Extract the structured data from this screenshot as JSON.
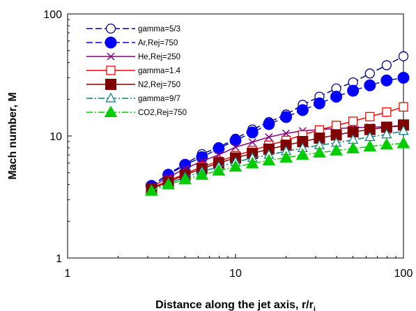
{
  "chart_data": {
    "type": "line",
    "xscale": "log",
    "yscale": "log",
    "xlim": [
      1,
      100
    ],
    "ylim": [
      1,
      100
    ],
    "xlabel": "Distance along the jet axis, r/r",
    "xlabel_sub": "j",
    "ylabel": "Mach number, M",
    "x_ticks": [
      "1",
      "10",
      "100"
    ],
    "y_ticks": [
      "1",
      "10",
      "100"
    ],
    "grid": false,
    "legend_position": "top-left",
    "series": [
      {
        "name": "gamma=5/3",
        "color": "#000080",
        "dash": "dashed",
        "marker": "circle-open",
        "x": [
          3.16,
          3.98,
          5.01,
          6.31,
          7.94,
          10,
          12.6,
          15.8,
          20,
          25.1,
          31.6,
          39.8,
          50.1,
          63.1,
          79.4,
          100
        ],
        "y": [
          3.9,
          4.9,
          5.9,
          7.1,
          8.1,
          9.5,
          11.3,
          13.0,
          15.0,
          18.0,
          21.0,
          24.5,
          27.5,
          32.5,
          38.0,
          45.0
        ]
      },
      {
        "name": "Ar,Rej=750",
        "color": "#0000ff",
        "dash": "dashed",
        "marker": "circle-filled",
        "x": [
          3.16,
          3.98,
          5.01,
          6.31,
          7.94,
          10,
          12.6,
          15.8,
          20,
          25.1,
          31.6,
          39.8,
          50.1,
          63.1,
          79.4,
          100
        ],
        "y": [
          3.9,
          4.8,
          5.8,
          6.7,
          7.9,
          9.2,
          10.7,
          12.5,
          14.3,
          16.3,
          18.5,
          21.0,
          23.5,
          26.0,
          28.5,
          30.0
        ]
      },
      {
        "name": "He,Rej=250",
        "color": "#800080",
        "dash": "solid",
        "marker": "x",
        "x": [
          3.16,
          3.98,
          5.01,
          6.31,
          7.94,
          10,
          12.6,
          15.8,
          20,
          25.1,
          31.6,
          39.8,
          50.1,
          63.1,
          79.4,
          100
        ],
        "y": [
          3.8,
          4.6,
          5.4,
          6.2,
          7.0,
          8.1,
          8.9,
          9.8,
          10.5,
          11.0,
          11.3,
          11.5,
          11.7,
          11.8,
          11.9,
          12.0
        ]
      },
      {
        "name": "gamma=1.4",
        "color": "#ff0000",
        "dash": "solid",
        "marker": "square-open",
        "x": [
          3.16,
          3.98,
          5.01,
          6.31,
          7.94,
          10,
          12.6,
          15.8,
          20,
          25.1,
          31.6,
          39.8,
          50.1,
          63.1,
          79.4,
          100
        ],
        "y": [
          3.75,
          4.3,
          4.9,
          5.6,
          6.2,
          6.9,
          7.6,
          8.4,
          9.2,
          10.2,
          11.2,
          12.2,
          13.2,
          14.4,
          15.7,
          17.3
        ]
      },
      {
        "name": "N2,Rej=750",
        "color": "#800000",
        "dash": "solid",
        "marker": "square-filled",
        "x": [
          3.16,
          3.98,
          5.01,
          6.31,
          7.94,
          10,
          12.6,
          15.8,
          20,
          25.1,
          31.6,
          39.8,
          50.1,
          63.1,
          79.4,
          100
        ],
        "y": [
          3.7,
          4.2,
          4.8,
          5.4,
          6.0,
          6.6,
          7.2,
          7.8,
          8.4,
          9.0,
          9.6,
          10.2,
          10.8,
          11.3,
          11.8,
          12.3
        ]
      },
      {
        "name": "gamma=9/7",
        "color": "#008080",
        "dash": "dashdot",
        "marker": "triangle-open",
        "x": [
          3.16,
          3.98,
          5.01,
          6.31,
          7.94,
          10,
          12.6,
          15.8,
          20,
          25.1,
          31.6,
          39.8,
          50.1,
          63.1,
          79.4,
          100
        ],
        "y": [
          3.6,
          4.1,
          4.6,
          5.1,
          5.6,
          6.1,
          6.6,
          7.0,
          7.5,
          7.95,
          8.4,
          8.8,
          9.3,
          9.8,
          10.3,
          11.0
        ]
      },
      {
        "name": "CO2,Rej=750",
        "color": "#00cc00",
        "dash": "dashdot",
        "marker": "triangle-filled",
        "x": [
          3.16,
          3.98,
          5.01,
          6.31,
          7.94,
          10,
          12.6,
          15.8,
          20,
          25.1,
          31.6,
          39.8,
          50.1,
          63.1,
          79.4,
          100
        ],
        "y": [
          3.55,
          4.0,
          4.4,
          4.8,
          5.2,
          5.6,
          5.95,
          6.3,
          6.65,
          7.0,
          7.3,
          7.6,
          7.9,
          8.2,
          8.5,
          8.7
        ]
      }
    ]
  }
}
